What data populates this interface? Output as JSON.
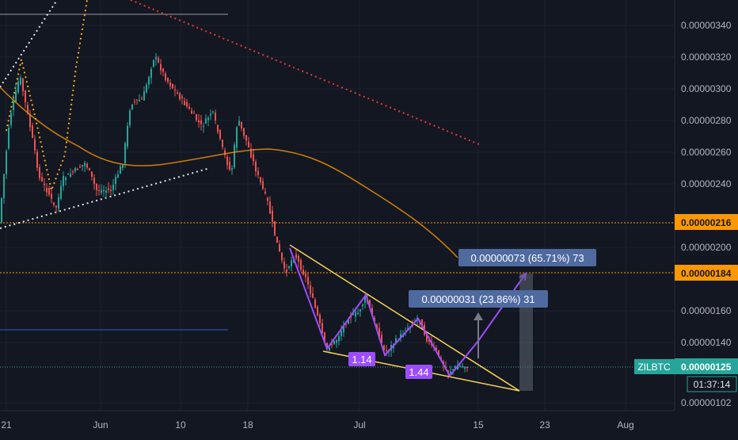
{
  "chart_data": {
    "type": "candlestick",
    "symbol": "ZILBTC",
    "last_price": "0.00000125",
    "countdown": "01:37:14",
    "y_range": [
      1e-06,
      3.5e-06
    ],
    "y_ticks": [
      {
        "value": 3.4e-06,
        "label": "0.00000340"
      },
      {
        "value": 3.2e-06,
        "label": "0.00000320"
      },
      {
        "value": 3e-06,
        "label": "0.00000300"
      },
      {
        "value": 2.8e-06,
        "label": "0.00000280"
      },
      {
        "value": 2.6e-06,
        "label": "0.00000260"
      },
      {
        "value": 2.4e-06,
        "label": "0.00000240"
      },
      {
        "value": 2e-06,
        "label": "0.00000200"
      },
      {
        "value": 1.6e-06,
        "label": "0.00000160"
      },
      {
        "value": 1.4e-06,
        "label": "0.00000140"
      },
      {
        "value": 1.02e-06,
        "label": "0.00000102"
      }
    ],
    "x_ticks": [
      "21",
      "Jun",
      "10",
      "18",
      "Jul",
      "15",
      "23",
      "Aug"
    ],
    "price_labels": [
      {
        "value": 2.16e-06,
        "label": "0.00000216",
        "color": "#ff9800"
      },
      {
        "value": 1.84e-06,
        "label": "0.00000184",
        "color": "#ff9800"
      },
      {
        "value": 1.25e-06,
        "label": "0.00000125",
        "color": "#26a69a"
      }
    ],
    "annotations": {
      "target_1": "0.00000031 (23.86%) 31",
      "target_2": "0.00000073 (65.71%) 73",
      "ratio_1": "1.14",
      "ratio_2": "1.44"
    },
    "colors": {
      "background": "#131722",
      "up": "#26a69a",
      "down": "#ef5350",
      "moving_average": "#ff9800",
      "wedge": "#f7d35a",
      "pattern": "#9c4dff",
      "projection": "#7a8596"
    }
  }
}
